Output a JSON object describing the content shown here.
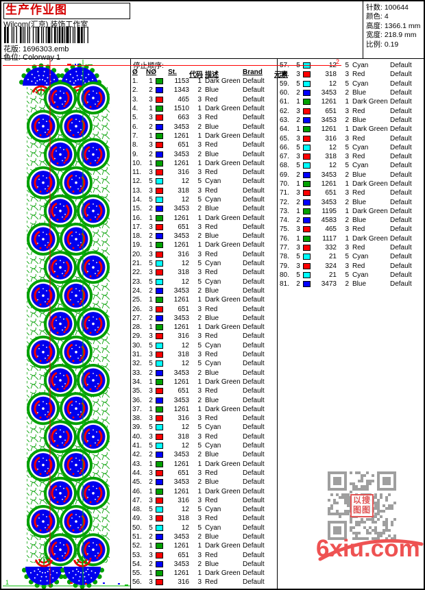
{
  "header": {
    "title": "生产作业图",
    "studio": "Wilcom(汇京) 装饰工作室",
    "pattern_label": "花版:",
    "pattern_value": "1696303.emb",
    "colorway_label": "色位:",
    "colorway_value": "Colorway 1",
    "info": [
      {
        "label": "针数:",
        "value": "100644"
      },
      {
        "label": "颜色:",
        "value": "4"
      },
      {
        "label": "高度:",
        "value": "1366.1 mm"
      },
      {
        "label": "宽度:",
        "value": "218.9 mm"
      },
      {
        "label": "比例:",
        "value": "0.19"
      }
    ]
  },
  "stop_list": {
    "title": "停止顺序:",
    "columns": [
      "Ø",
      "NØ",
      "St.",
      "代码",
      "描述",
      "Brand",
      "元素"
    ],
    "brand_default": "Default",
    "colors": {
      "1": {
        "name": "Dark Green",
        "hex": "#00a000"
      },
      "2": {
        "name": "Blue",
        "hex": "#0000ff"
      },
      "3": {
        "name": "Red",
        "hex": "#ff0000"
      },
      "5": {
        "name": "Cyan",
        "hex": "#00ffff"
      }
    },
    "rows": [
      [
        1,
        1153
      ],
      [
        2,
        1343
      ],
      [
        3,
        465
      ],
      [
        1,
        1510
      ],
      [
        3,
        663
      ],
      [
        2,
        3453
      ],
      [
        1,
        1261
      ],
      [
        3,
        651
      ],
      [
        2,
        3453
      ],
      [
        1,
        1261
      ],
      [
        3,
        316
      ],
      [
        5,
        12
      ],
      [
        3,
        318
      ],
      [
        5,
        12
      ],
      [
        2,
        3453
      ],
      [
        1,
        1261
      ],
      [
        3,
        651
      ],
      [
        2,
        3453
      ],
      [
        1,
        1261
      ],
      [
        3,
        316
      ],
      [
        5,
        12
      ],
      [
        3,
        318
      ],
      [
        5,
        12
      ],
      [
        2,
        3453
      ],
      [
        1,
        1261
      ],
      [
        3,
        651
      ],
      [
        2,
        3453
      ],
      [
        1,
        1261
      ],
      [
        3,
        316
      ],
      [
        5,
        12
      ],
      [
        3,
        318
      ],
      [
        5,
        12
      ],
      [
        2,
        3453
      ],
      [
        1,
        1261
      ],
      [
        3,
        651
      ],
      [
        2,
        3453
      ],
      [
        1,
        1261
      ],
      [
        3,
        316
      ],
      [
        5,
        12
      ],
      [
        3,
        318
      ],
      [
        5,
        12
      ],
      [
        2,
        3453
      ],
      [
        1,
        1261
      ],
      [
        3,
        651
      ],
      [
        2,
        3453
      ],
      [
        1,
        1261
      ],
      [
        3,
        316
      ],
      [
        5,
        12
      ],
      [
        3,
        318
      ],
      [
        5,
        12
      ],
      [
        2,
        3453
      ],
      [
        1,
        1261
      ],
      [
        3,
        651
      ],
      [
        2,
        3453
      ],
      [
        1,
        1261
      ],
      [
        3,
        316
      ],
      [
        5,
        12
      ],
      [
        3,
        318
      ],
      [
        5,
        12
      ],
      [
        2,
        3453
      ],
      [
        1,
        1261
      ],
      [
        3,
        651
      ],
      [
        2,
        3453
      ],
      [
        1,
        1261
      ],
      [
        3,
        316
      ],
      [
        5,
        12
      ],
      [
        3,
        318
      ],
      [
        5,
        12
      ],
      [
        2,
        3453
      ],
      [
        1,
        1261
      ],
      [
        3,
        651
      ],
      [
        2,
        3453
      ],
      [
        1,
        1195
      ],
      [
        2,
        4583
      ],
      [
        3,
        465
      ],
      [
        1,
        1117
      ],
      [
        3,
        332
      ],
      [
        5,
        21
      ],
      [
        3,
        324
      ],
      [
        5,
        21
      ],
      [
        2,
        3473
      ]
    ],
    "left_column_count": 56
  },
  "design": {
    "motif_green": "#00a000",
    "motif_blue": "#0000ee",
    "motif_red": "#f00000",
    "guide_red": "#ff0000",
    "guide_green": "#00bb00",
    "top_marker": "2",
    "bottom_marker": "1"
  },
  "watermark": {
    "domain": "6xiu.com",
    "seal_chars": [
      "以",
      "搜",
      "图",
      "图"
    ],
    "qr_color": "#8f8f8f",
    "accent": "#ee5252"
  }
}
